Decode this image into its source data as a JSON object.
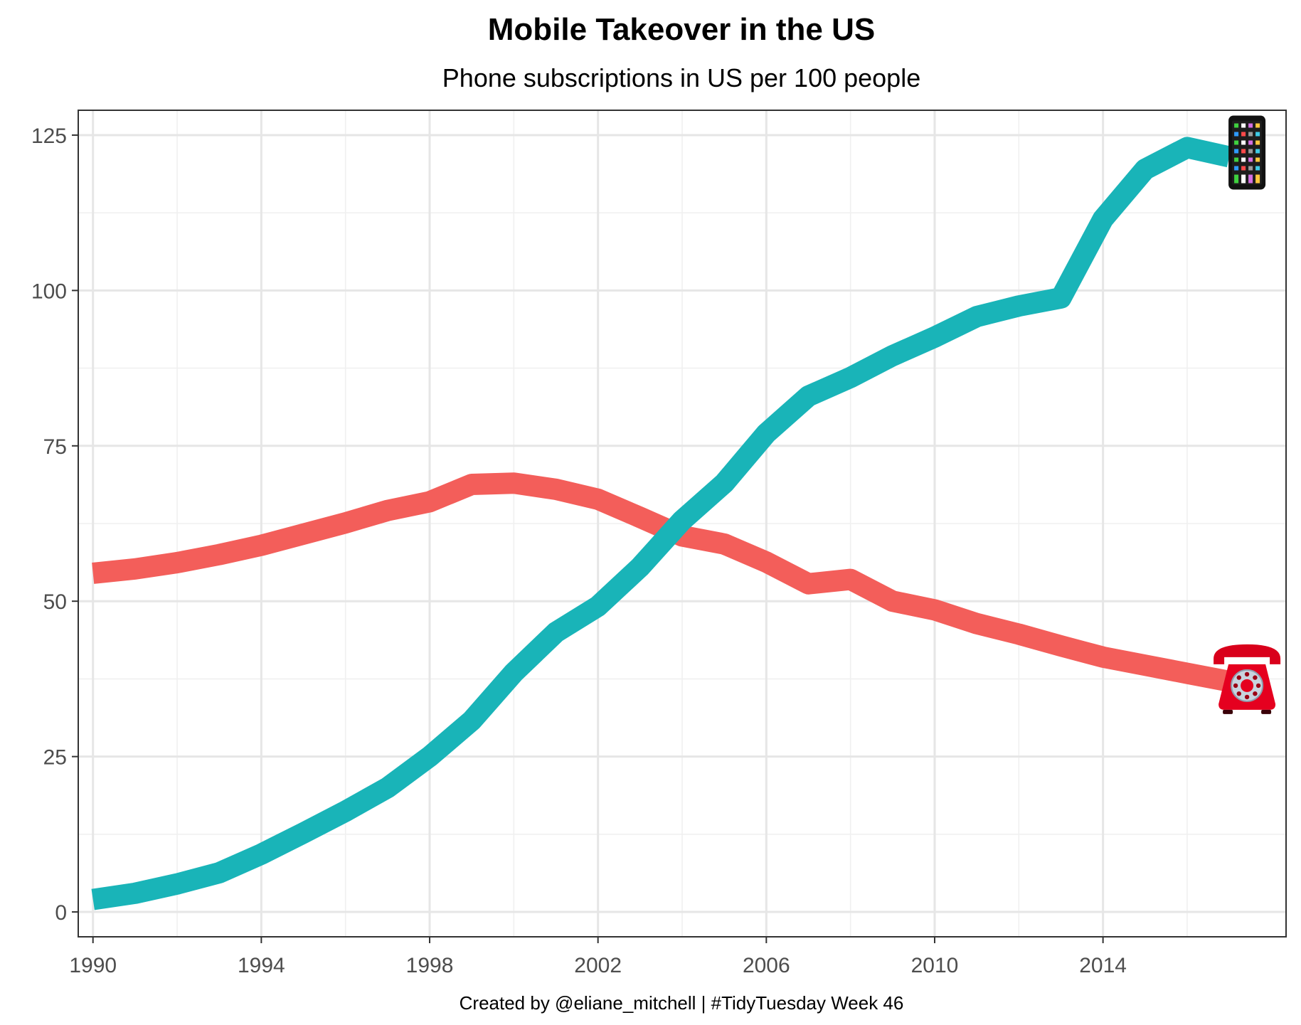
{
  "chart_data": {
    "type": "line",
    "title": "Mobile Takeover in the US",
    "subtitle": "Phone subscriptions in US per 100 people",
    "caption": "Created by @eliane_mitchell | #TidyTuesday Week 46",
    "xlabel": "",
    "ylabel": "",
    "xlim": [
      1989.65,
      2018.35
    ],
    "ylim": [
      -4,
      129
    ],
    "x_ticks": [
      1990,
      1994,
      1998,
      2002,
      2006,
      2010,
      2014
    ],
    "x_tick_labels": [
      "1990",
      "1994",
      "1998",
      "2002",
      "2006",
      "2010",
      "2014"
    ],
    "y_ticks": [
      0,
      25,
      50,
      75,
      100,
      125
    ],
    "y_tick_labels": [
      "0",
      "25",
      "50",
      "75",
      "100",
      "125"
    ],
    "grid": true,
    "legend": "none",
    "x": [
      1990,
      1991,
      1992,
      1993,
      1994,
      1995,
      1996,
      1997,
      1998,
      1999,
      2000,
      2001,
      2002,
      2003,
      2004,
      2005,
      2006,
      2007,
      2008,
      2009,
      2010,
      2011,
      2012,
      2013,
      2014,
      2015,
      2016,
      2017
    ],
    "series": [
      {
        "name": "landline",
        "color": "#f35e5a",
        "end_icon": "telephone-icon",
        "values": [
          54.5,
          55.2,
          56.2,
          57.5,
          59.0,
          60.8,
          62.6,
          64.6,
          66.0,
          68.8,
          69.0,
          68.0,
          66.4,
          63.5,
          60.5,
          59.2,
          56.3,
          52.8,
          53.5,
          50.0,
          48.6,
          46.4,
          44.7,
          42.8,
          41.0,
          39.7,
          38.4,
          37.1
        ]
      },
      {
        "name": "mobile",
        "color": "#19b4b8",
        "end_icon": "mobile-phone-icon",
        "values": [
          2.0,
          3.0,
          4.5,
          6.3,
          9.3,
          12.7,
          16.2,
          20.0,
          25.0,
          30.8,
          38.5,
          45.0,
          49.2,
          55.5,
          63.0,
          69.0,
          77.0,
          83.0,
          86.0,
          89.5,
          92.5,
          95.8,
          97.5,
          98.8,
          111.5,
          119.5,
          123.0,
          121.5
        ]
      }
    ]
  }
}
